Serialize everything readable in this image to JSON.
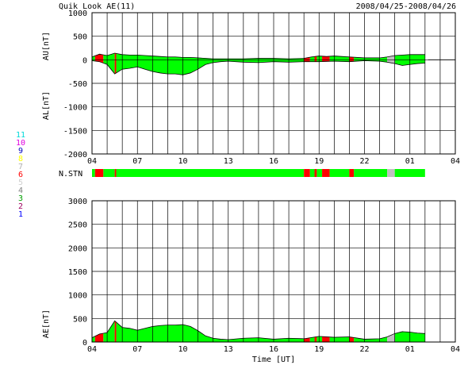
{
  "header": {
    "title": "Quik Look AE(11)",
    "date_range": "2008/04/25-2008/04/26"
  },
  "station_legend": {
    "labels": [
      "11",
      "10",
      "9",
      "8",
      "7",
      "6",
      "5",
      "4",
      "3",
      "2",
      "1"
    ],
    "colors": [
      "#00d8d8",
      "#e000e0",
      "#0000c0",
      "#ffff00",
      "#b0b0b0",
      "#ff0000",
      "#d0d0d0",
      "#808080",
      "#00a000",
      "#a00060",
      "#0000ff"
    ]
  },
  "nstn_label": "N.STN",
  "colors": {
    "fill_main": "#00ff00",
    "fill_missing": "#ff0000",
    "fill_gray": "#c0c0c0",
    "line": "#000000"
  },
  "chart_data": [
    {
      "type": "area",
      "panel": "AU/AL",
      "ylabel_top": "AU[nT]",
      "ylabel_bottom": "AL[nT]",
      "ylim": [
        -2000,
        1000
      ],
      "yticks": [
        1000,
        500,
        0,
        -500,
        -1000,
        -1500,
        -2000
      ],
      "xlim_hours": [
        4,
        28
      ],
      "xtick_labels": [
        "04",
        "07",
        "10",
        "13",
        "16",
        "19",
        "22",
        "01",
        "04"
      ],
      "au_series": {
        "name": "AU",
        "x": [
          4.0,
          4.5,
          5.0,
          5.5,
          6.0,
          6.5,
          7.0,
          7.5,
          8.0,
          8.5,
          9.0,
          9.5,
          10.0,
          10.5,
          11.0,
          11.5,
          12.0,
          13.0,
          14.0,
          15.0,
          16.0,
          17.0,
          18.0,
          18.5,
          19.0,
          19.5,
          20.0,
          20.5,
          21.0,
          22.0,
          23.0,
          23.5,
          24.0,
          24.5,
          25.0,
          25.5,
          26.0
        ],
        "values": [
          60,
          120,
          90,
          140,
          110,
          100,
          100,
          90,
          80,
          70,
          60,
          60,
          50,
          50,
          40,
          30,
          20,
          20,
          20,
          30,
          30,
          20,
          30,
          60,
          80,
          70,
          80,
          70,
          60,
          40,
          40,
          60,
          90,
          100,
          110,
          110,
          110
        ]
      },
      "al_series": {
        "name": "AL",
        "x": [
          4.0,
          4.5,
          5.0,
          5.5,
          6.0,
          6.5,
          7.0,
          7.5,
          8.0,
          8.5,
          9.0,
          9.5,
          10.0,
          10.5,
          11.0,
          11.5,
          12.0,
          12.5,
          13.0,
          14.0,
          15.0,
          16.0,
          17.0,
          18.0,
          19.0,
          20.0,
          21.0,
          22.0,
          23.0,
          23.5,
          24.0,
          24.5,
          25.0,
          25.5,
          26.0
        ],
        "values": [
          -20,
          -40,
          -100,
          -300,
          -200,
          -180,
          -150,
          -200,
          -250,
          -280,
          -300,
          -300,
          -320,
          -280,
          -200,
          -100,
          -60,
          -40,
          -30,
          -50,
          -60,
          -40,
          -50,
          -40,
          -40,
          -30,
          -40,
          -20,
          -30,
          -50,
          -80,
          -120,
          -100,
          -80,
          -70
        ]
      }
    },
    {
      "type": "area",
      "panel": "AE",
      "ylabel": "AE[nT]",
      "xlabel": "Time [UT]",
      "ylim": [
        0,
        3000
      ],
      "yticks": [
        3000,
        2500,
        2000,
        1500,
        1000,
        500,
        0
      ],
      "xlim_hours": [
        4,
        28
      ],
      "xtick_labels": [
        "04",
        "07",
        "10",
        "13",
        "16",
        "19",
        "22",
        "01",
        "04"
      ],
      "ae_series": {
        "name": "AE",
        "x": [
          4.0,
          4.5,
          5.0,
          5.5,
          6.0,
          6.5,
          7.0,
          7.5,
          8.0,
          8.5,
          9.0,
          9.5,
          10.0,
          10.5,
          11.0,
          11.5,
          12.0,
          12.5,
          13.0,
          14.0,
          15.0,
          16.0,
          17.0,
          18.0,
          19.0,
          20.0,
          21.0,
          22.0,
          23.0,
          23.5,
          24.0,
          24.5,
          25.0,
          25.5,
          26.0
        ],
        "values": [
          90,
          170,
          200,
          450,
          310,
          290,
          250,
          290,
          330,
          350,
          360,
          360,
          370,
          330,
          240,
          130,
          80,
          60,
          50,
          80,
          90,
          60,
          80,
          70,
          120,
          100,
          110,
          60,
          70,
          110,
          180,
          220,
          210,
          190,
          180
        ]
      }
    }
  ],
  "nstn_segments": [
    {
      "from": 4.0,
      "to": 4.2,
      "status": "main"
    },
    {
      "from": 4.2,
      "to": 4.75,
      "status": "missing"
    },
    {
      "from": 4.75,
      "to": 5.5,
      "status": "main"
    },
    {
      "from": 5.5,
      "to": 5.6,
      "status": "missing"
    },
    {
      "from": 5.6,
      "to": 18.0,
      "status": "main"
    },
    {
      "from": 18.0,
      "to": 18.4,
      "status": "missing"
    },
    {
      "from": 18.4,
      "to": 18.7,
      "status": "main"
    },
    {
      "from": 18.7,
      "to": 18.85,
      "status": "missing"
    },
    {
      "from": 18.85,
      "to": 19.2,
      "status": "main"
    },
    {
      "from": 19.2,
      "to": 19.7,
      "status": "missing"
    },
    {
      "from": 19.7,
      "to": 21.0,
      "status": "main"
    },
    {
      "from": 21.0,
      "to": 21.3,
      "status": "missing"
    },
    {
      "from": 21.3,
      "to": 23.5,
      "status": "main"
    },
    {
      "from": 23.5,
      "to": 24.0,
      "status": "gray"
    },
    {
      "from": 24.0,
      "to": 26.0,
      "status": "main"
    }
  ],
  "data_end_hour": 26.2
}
